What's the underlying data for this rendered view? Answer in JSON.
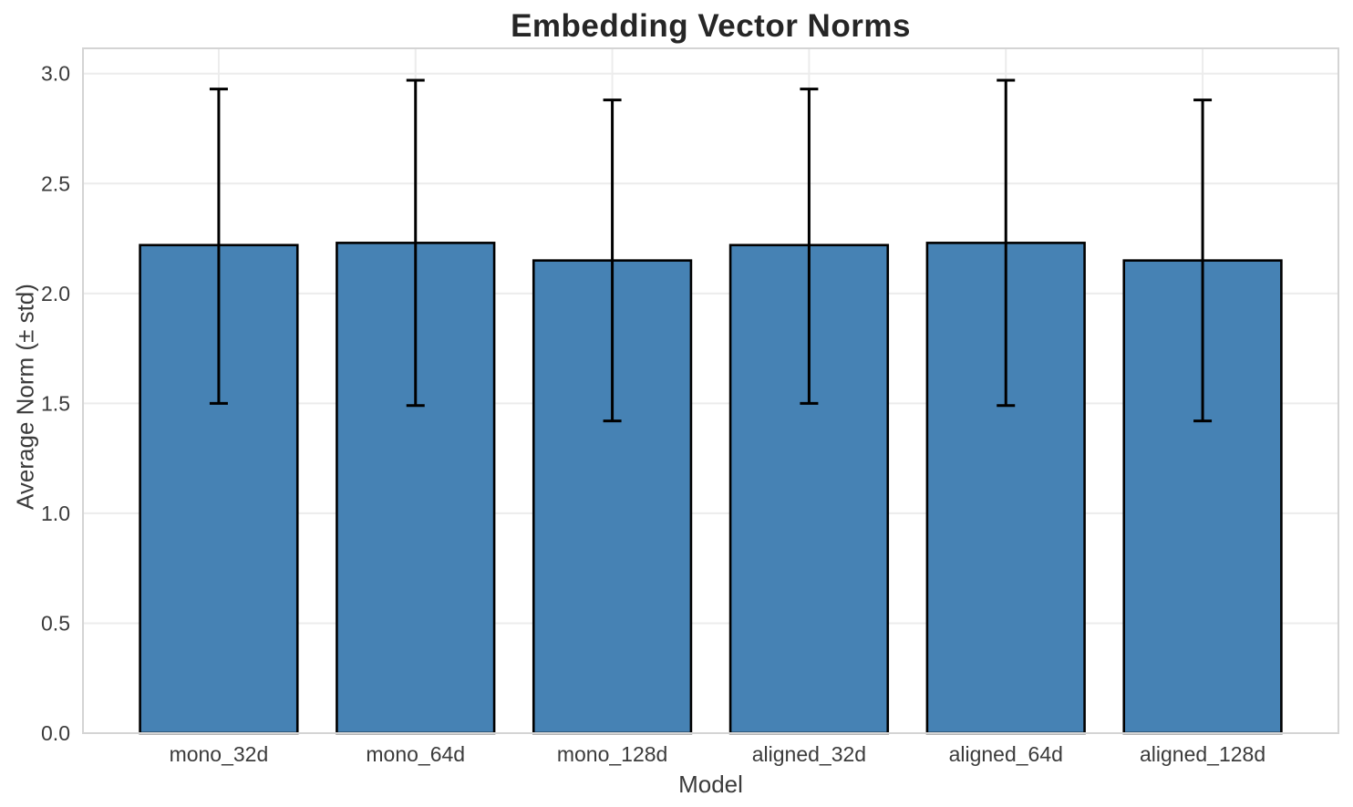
{
  "chart_data": {
    "type": "bar",
    "title": "Embedding Vector Norms",
    "xlabel": "Model",
    "ylabel": "Average Norm (± std)",
    "categories": [
      "mono_32d",
      "mono_64d",
      "mono_128d",
      "aligned_32d",
      "aligned_64d",
      "aligned_128d"
    ],
    "values": [
      2.22,
      2.23,
      2.15,
      2.22,
      2.23,
      2.15
    ],
    "std": [
      0.72,
      0.74,
      0.73,
      0.72,
      0.74,
      0.73
    ],
    "error_upper": [
      2.93,
      2.97,
      2.88,
      2.93,
      2.97,
      2.88
    ],
    "error_lower": [
      1.5,
      1.49,
      1.42,
      1.5,
      1.49,
      1.42
    ],
    "yticks": [
      0.0,
      0.5,
      1.0,
      1.5,
      2.0,
      2.5,
      3.0
    ],
    "ytick_labels": [
      "0.0",
      "0.5",
      "1.0",
      "1.5",
      "2.0",
      "2.5",
      "3.0"
    ],
    "ylim": [
      0,
      3.115
    ],
    "xlim": [
      -0.69,
      5.69
    ],
    "bar_width": 0.8,
    "grid": true,
    "legend": false,
    "colors": {
      "bar_fill": "#4682B4",
      "bar_edge": "#000000",
      "error_bar": "#000000",
      "grid_line": "#ececec",
      "spine": "#d4d4d4",
      "title_text": "#262626",
      "label_text": "#3b3b3b",
      "background": "#ffffff"
    }
  }
}
